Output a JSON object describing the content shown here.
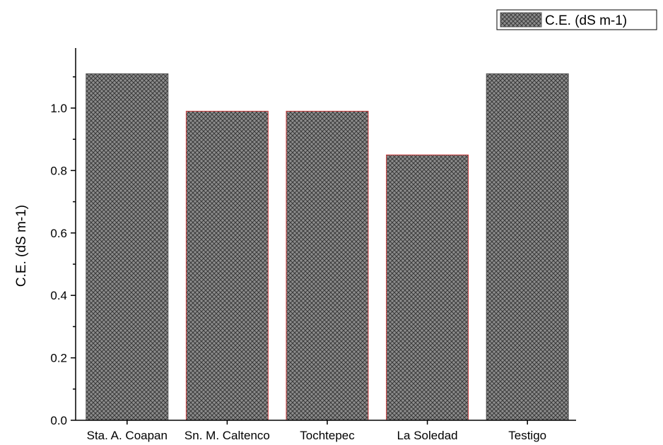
{
  "chart_data": {
    "type": "bar",
    "categories": [
      "Sta. A. Coapan",
      "Sn. M. Caltenco",
      "Tochtepec",
      "La Soledad",
      "Testigo"
    ],
    "series": [
      {
        "name": "C.E. (dS m-1)",
        "values": [
          1.11,
          0.99,
          0.99,
          0.85,
          1.11
        ]
      }
    ],
    "title": "",
    "xlabel": "",
    "ylabel": "C.E. (dS m-1)",
    "ylim": [
      0,
      1.2
    ],
    "yticks": [
      "0.0",
      "0.2",
      "0.4",
      "0.6",
      "0.8",
      "1.0"
    ],
    "legend_position": "top-right",
    "grid": false,
    "colors": {
      "bar_fill": "#8c8c8c",
      "hatch": "#3a3a3a",
      "bar_outline_default": "#555555",
      "bar_outline_highlight": "#d04040"
    },
    "bar_outlines": [
      "default",
      "highlight",
      "highlight",
      "highlight",
      "default"
    ]
  }
}
